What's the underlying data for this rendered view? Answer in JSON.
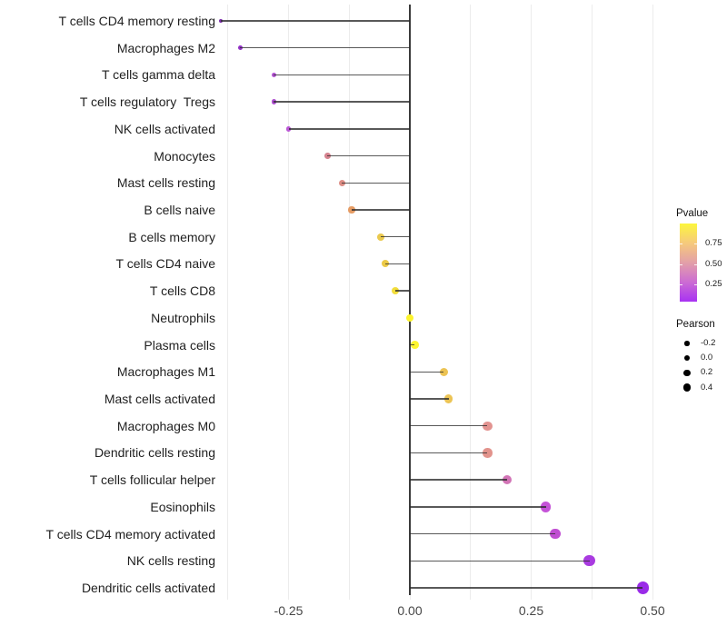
{
  "chart_data": {
    "type": "scatter",
    "variant": "lollipop",
    "title": "",
    "xlabel": "",
    "ylabel": "",
    "categories": [
      "T cells CD4 memory resting",
      "Macrophages M2",
      "T cells gamma delta",
      "T cells regulatory  Tregs",
      "NK cells activated",
      "Monocytes",
      "Mast cells resting",
      "B cells naive",
      "B cells memory",
      "T cells CD4 naive",
      "T cells CD8",
      "Neutrophils",
      "Plasma cells",
      "Macrophages M1",
      "Mast cells activated",
      "Macrophages M0",
      "Dendritic cells resting",
      "T cells follicular helper",
      "Eosinophils",
      "T cells CD4 memory activated",
      "NK cells resting",
      "Dendritic cells activated"
    ],
    "series": [
      {
        "name": "Pearson",
        "values": [
          -0.39,
          -0.35,
          -0.28,
          -0.28,
          -0.25,
          -0.17,
          -0.14,
          -0.12,
          -0.06,
          -0.05,
          -0.03,
          0.0,
          0.01,
          0.07,
          0.08,
          0.16,
          0.16,
          0.2,
          0.28,
          0.3,
          0.37,
          0.48
        ]
      }
    ],
    "point_colors": [
      "#7b2dab",
      "#9232c6",
      "#b253d2",
      "#ad4ecf",
      "#bb58d6",
      "#d5838f",
      "#dd8d85",
      "#e69c64",
      "#eac94e",
      "#ecca47",
      "#f2dd3c",
      "#fcf32d",
      "#fdf42f",
      "#ecc353",
      "#ecc455",
      "#e29390",
      "#e2938c",
      "#d274b6",
      "#c553d8",
      "#c04ed2",
      "#a93be0",
      "#9a2be8"
    ],
    "xlim": [
      -0.39,
      0.54
    ],
    "x_ticks": {
      "values": [
        -0.25,
        0.0,
        0.25,
        0.5
      ],
      "labels": [
        "-0.25",
        "0.00",
        "0.25",
        "0.50"
      ]
    },
    "grid": "vertical light-gray lines every 0.125, no panel border",
    "zero_line": true,
    "legend_position": "right",
    "legend_pvalue": {
      "title": "Pvalue",
      "tick_labels": [
        "0.75",
        "0.50",
        "0.25"
      ],
      "gradient_top_to_bottom": [
        "#fcf63d",
        "#f6ca7c",
        "#e3a0a8",
        "#cc6cd3",
        "#a832f2"
      ]
    },
    "legend_pearson": {
      "title": "Pearson",
      "entries": [
        {
          "label": "-0.2",
          "value": -0.2
        },
        {
          "label": "0.0",
          "value": 0.0
        },
        {
          "label": "0.2",
          "value": 0.2
        },
        {
          "label": "0.4",
          "value": 0.4
        }
      ],
      "dot_color": "#000000"
    }
  }
}
